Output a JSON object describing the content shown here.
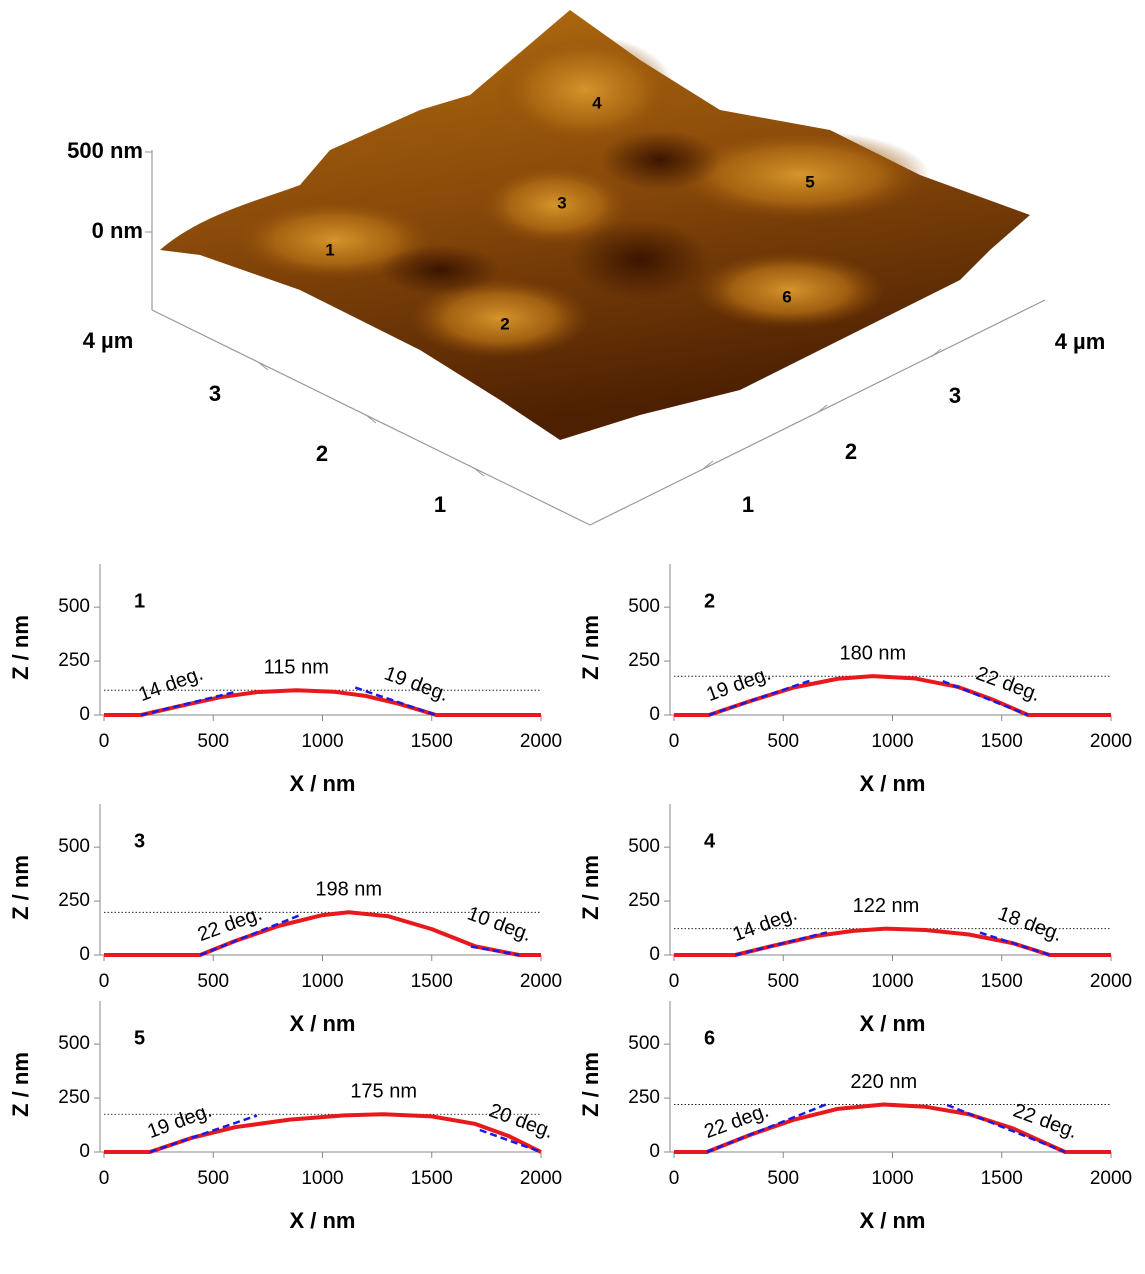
{
  "afm_image": {
    "z_labels": [
      "500 nm",
      "0 nm"
    ],
    "left_axis_labels": [
      "4 µm",
      "3",
      "2",
      "1"
    ],
    "right_axis_labels": [
      "4 µm",
      "3",
      "2",
      "1"
    ],
    "feature_labels": [
      "1",
      "2",
      "3",
      "4",
      "5",
      "6"
    ]
  },
  "chart_data": [
    {
      "type": "line",
      "title": "1",
      "xlabel": "X / nm",
      "ylabel": "Z / nm",
      "xlim": [
        0,
        2000
      ],
      "xticks": [
        0,
        500,
        1000,
        1500,
        2000
      ],
      "ylim": [
        0,
        700
      ],
      "yticks": [
        0,
        250,
        500
      ],
      "x": [
        0,
        170,
        350,
        530,
        700,
        880,
        1050,
        1200,
        1350,
        1520,
        2000
      ],
      "series": [
        {
          "color": "#e8191c",
          "values": [
            0,
            0,
            42,
            82,
            106,
            115,
            108,
            88,
            52,
            0,
            0
          ]
        }
      ],
      "reference_line": {
        "value": 115,
        "label": "115 nm",
        "color": "#b00000"
      },
      "tangent_color": "#1a1ae6",
      "tangents": [
        {
          "value": 14,
          "label": "14 deg.",
          "x": [
            170,
            600
          ],
          "y": [
            0,
            107
          ]
        },
        {
          "value": 19,
          "label": "19 deg.",
          "x": [
            1150,
            1520
          ],
          "y": [
            127,
            0
          ]
        }
      ]
    },
    {
      "type": "line",
      "title": "2",
      "xlabel": "X / nm",
      "ylabel": "Z / nm",
      "xlim": [
        0,
        2000
      ],
      "xticks": [
        0,
        500,
        1000,
        1500,
        2000
      ],
      "ylim": [
        0,
        700
      ],
      "yticks": [
        0,
        250,
        500
      ],
      "x": [
        0,
        160,
        350,
        550,
        750,
        910,
        1100,
        1300,
        1450,
        1620,
        2000
      ],
      "series": [
        {
          "color": "#e8191c",
          "values": [
            0,
            0,
            65,
            128,
            168,
            180,
            170,
            130,
            75,
            0,
            0
          ]
        }
      ],
      "reference_line": {
        "value": 180,
        "label": "180 nm",
        "color": "#b00000"
      },
      "tangent_color": "#1a1ae6",
      "tangents": [
        {
          "value": 19,
          "label": "19 deg.",
          "x": [
            160,
            620
          ],
          "y": [
            0,
            158
          ]
        },
        {
          "value": 22,
          "label": "22 deg.",
          "x": [
            1230,
            1620
          ],
          "y": [
            157,
            0
          ]
        }
      ]
    },
    {
      "type": "line",
      "title": "3",
      "xlabel": "X / nm",
      "ylabel": "Z / nm",
      "xlim": [
        0,
        2000
      ],
      "xticks": [
        0,
        500,
        1000,
        1500,
        2000
      ],
      "ylim": [
        0,
        700
      ],
      "yticks": [
        0,
        250,
        500
      ],
      "x": [
        0,
        440,
        600,
        800,
        1000,
        1120,
        1300,
        1500,
        1700,
        1900,
        2000
      ],
      "series": [
        {
          "color": "#e8191c",
          "values": [
            0,
            0,
            65,
            135,
            185,
            198,
            180,
            120,
            40,
            0,
            0
          ]
        }
      ],
      "reference_line": {
        "value": 198,
        "label": "198 nm",
        "color": "#b00000"
      },
      "tangent_color": "#1a1ae6",
      "tangents": [
        {
          "value": 22,
          "label": "22 deg.",
          "x": [
            440,
            900
          ],
          "y": [
            0,
            186
          ]
        },
        {
          "value": 10,
          "label": "10 deg.",
          "x": [
            1680,
            1900
          ],
          "y": [
            39,
            0
          ]
        }
      ]
    },
    {
      "type": "line",
      "title": "4",
      "xlabel": "X / nm",
      "ylabel": "Z / nm",
      "xlim": [
        0,
        2000
      ],
      "xticks": [
        0,
        500,
        1000,
        1500,
        2000
      ],
      "ylim": [
        0,
        700
      ],
      "yticks": [
        0,
        250,
        500
      ],
      "x": [
        0,
        280,
        450,
        650,
        820,
        970,
        1150,
        1350,
        1550,
        1720,
        2000
      ],
      "series": [
        {
          "color": "#e8191c",
          "values": [
            0,
            0,
            42,
            88,
            112,
            122,
            116,
            95,
            55,
            0,
            0
          ]
        }
      ],
      "reference_line": {
        "value": 122,
        "label": "122 nm",
        "color": "#b00000"
      },
      "tangent_color": "#1a1ae6",
      "tangents": [
        {
          "value": 14,
          "label": "14 deg.",
          "x": [
            280,
            700
          ],
          "y": [
            0,
            105
          ]
        },
        {
          "value": 18,
          "label": "18 deg.",
          "x": [
            1400,
            1720
          ],
          "y": [
            104,
            0
          ]
        }
      ]
    },
    {
      "type": "line",
      "title": "5",
      "xlabel": "X / nm",
      "ylabel": "Z / nm",
      "xlim": [
        0,
        2000
      ],
      "xticks": [
        0,
        500,
        1000,
        1500,
        2000
      ],
      "ylim": [
        0,
        700
      ],
      "yticks": [
        0,
        250,
        500
      ],
      "x": [
        0,
        210,
        400,
        600,
        850,
        1100,
        1280,
        1500,
        1700,
        1850,
        2000
      ],
      "series": [
        {
          "color": "#e8191c",
          "values": [
            0,
            0,
            65,
            115,
            150,
            170,
            175,
            165,
            130,
            75,
            0
          ]
        }
      ],
      "reference_line": {
        "value": 175,
        "label": "175 nm",
        "color": "#b00000"
      },
      "tangent_color": "#1a1ae6",
      "tangents": [
        {
          "value": 19,
          "label": "19 deg.",
          "x": [
            210,
            700
          ],
          "y": [
            0,
            169
          ]
        },
        {
          "value": 20,
          "label": "20 deg.",
          "x": [
            1720,
            2000
          ],
          "y": [
            102,
            0
          ]
        }
      ]
    },
    {
      "type": "line",
      "title": "6",
      "xlabel": "X / nm",
      "ylabel": "Z / nm",
      "xlim": [
        0,
        2000
      ],
      "xticks": [
        0,
        500,
        1000,
        1500,
        2000
      ],
      "ylim": [
        0,
        700
      ],
      "yticks": [
        0,
        250,
        500
      ],
      "x": [
        0,
        150,
        350,
        550,
        750,
        960,
        1150,
        1350,
        1550,
        1790,
        2000
      ],
      "series": [
        {
          "color": "#e8191c",
          "values": [
            0,
            0,
            80,
            150,
            200,
            220,
            210,
            175,
            110,
            0,
            0
          ]
        }
      ],
      "reference_line": {
        "value": 220,
        "label": "220 nm",
        "color": "#b00000"
      },
      "tangent_color": "#1a1ae6",
      "tangents": [
        {
          "value": 22,
          "label": "22 deg.",
          "x": [
            150,
            700
          ],
          "y": [
            0,
            222
          ]
        },
        {
          "value": 22,
          "label": "22 deg.",
          "x": [
            1250,
            1790
          ],
          "y": [
            218,
            0
          ]
        }
      ]
    }
  ]
}
